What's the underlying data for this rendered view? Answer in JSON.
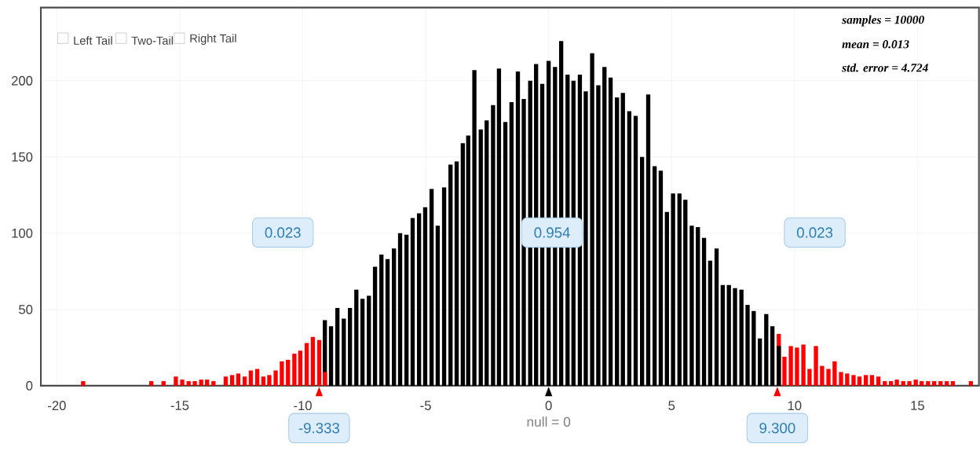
{
  "chart_data": {
    "type": "bar",
    "xlim": [
      -20.65,
      17.5
    ],
    "ylim": [
      0,
      248
    ],
    "xticks": [
      -20,
      -15,
      -10,
      -5,
      0,
      5,
      10,
      15
    ],
    "yticks": [
      0,
      50,
      100,
      150,
      200
    ],
    "grid": true,
    "series": [
      {
        "color": "#ff0000",
        "x": [
          -18.93,
          -16.16,
          -15.66,
          -15.16,
          -14.9,
          -14.64,
          -14.39,
          -14.13,
          -13.89,
          -13.63,
          -13.13,
          -12.87,
          -12.62,
          -12.36,
          -12.11,
          -11.85,
          -11.6,
          -11.36,
          -11.1,
          -10.85,
          -10.6,
          -10.34,
          -10.1,
          -9.84,
          -9.59,
          -9.33,
          -9.1
        ],
        "values": [
          3,
          3,
          3,
          6,
          4,
          3,
          3,
          4,
          4,
          3,
          6,
          7,
          8,
          6,
          10,
          11,
          6,
          7,
          10,
          16,
          17,
          21,
          23,
          28,
          32,
          30,
          9
        ]
      },
      {
        "color": "#000000",
        "x": [
          -9.1,
          -8.85,
          -8.59,
          -8.33,
          -8.08,
          -7.82,
          -7.57,
          -7.31,
          -7.06,
          -6.8,
          -6.55,
          -6.29,
          -6.04,
          -5.78,
          -5.53,
          -5.27,
          -5.02,
          -4.76,
          -4.51,
          -4.25,
          -3.99,
          -3.74,
          -3.49,
          -3.27,
          -3.02,
          -2.76,
          -2.52,
          -2.26,
          -2.02,
          -1.76,
          -1.51,
          -1.25,
          -1.01,
          -0.75,
          -0.51,
          -0.26,
          0,
          0.26,
          0.51,
          0.77,
          1.01,
          1.27,
          1.51,
          1.77,
          2.02,
          2.27,
          2.52,
          2.78,
          3.02,
          3.28,
          3.54,
          3.8,
          4.05,
          4.31,
          4.56,
          4.81,
          5.06,
          5.32,
          5.56,
          5.82,
          6.07,
          6.32,
          6.57,
          6.83,
          7.08,
          7.33,
          7.58,
          7.84,
          8.09,
          8.34,
          8.59,
          8.85,
          9.1,
          9.36
        ],
        "values": [
          43,
          39,
          51,
          44,
          51,
          63,
          57,
          59,
          78,
          86,
          83,
          90,
          100,
          99,
          110,
          113,
          117,
          129,
          105,
          130,
          145,
          147,
          159,
          164,
          207,
          168,
          174,
          184,
          208,
          173,
          186,
          206,
          188,
          200,
          211,
          198,
          213,
          209,
          226,
          204,
          200,
          204,
          193,
          218,
          197,
          209,
          202,
          189,
          192,
          180,
          177,
          150,
          191,
          144,
          141,
          114,
          126,
          126,
          122,
          105,
          104,
          97,
          82,
          90,
          66,
          66,
          64,
          63,
          53,
          49,
          31,
          47,
          39,
          26
        ]
      },
      {
        "color": "#ff0000",
        "x": [
          9.36,
          9.59,
          9.85,
          10.1,
          10.36,
          10.61,
          10.87,
          11.12,
          11.38,
          11.63,
          11.89,
          12.14,
          12.4,
          12.64,
          12.9,
          13.15,
          13.41,
          13.67,
          13.92,
          14.16,
          14.42,
          14.67,
          14.93,
          15.17,
          15.43,
          15.68,
          15.94,
          16.19,
          16.44,
          17.17
        ],
        "values": [
          34,
          19,
          26,
          25,
          27,
          11,
          26,
          13,
          11,
          16,
          9,
          8,
          7,
          6,
          7,
          7,
          6,
          3,
          3,
          4,
          3,
          3,
          4,
          3,
          3,
          3,
          3,
          3,
          3,
          3
        ]
      }
    ],
    "annotations": [
      "Left Tail",
      "Two-Tail",
      "Right Tail",
      "samples = 10000",
      "mean = 0.013",
      "std. error = 4.724",
      "0.023",
      "0.954",
      "0.023",
      {
        "text": "-9.333",
        "x": -9.333,
        "y": 0
      },
      {
        "text": "null = 0",
        "x": 0,
        "y": 0
      },
      {
        "text": "9.300",
        "x": 9.3,
        "y": 0
      }
    ]
  }
}
